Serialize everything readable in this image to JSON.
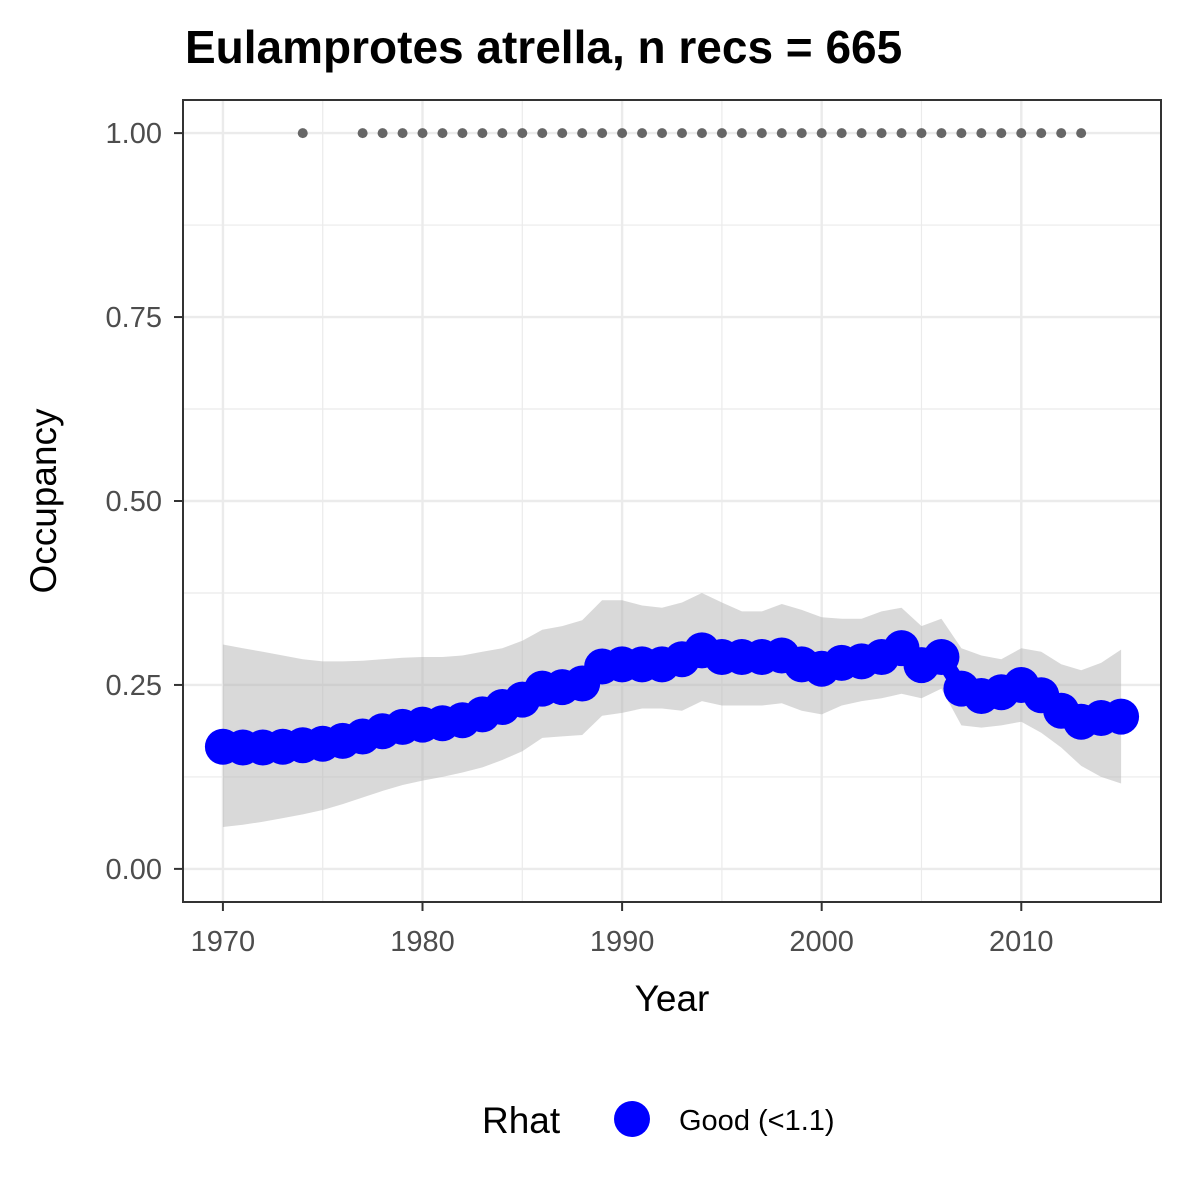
{
  "chart_data": {
    "type": "line",
    "title": "Eulamprotes atrella, n recs = 665",
    "xlabel": "Year",
    "ylabel": "Occupancy",
    "xlim": [
      1968,
      2017
    ],
    "ylim": [
      -0.045,
      1.045
    ],
    "x_ticks": [
      1970,
      1980,
      1990,
      2000,
      2010
    ],
    "x_tick_labels": [
      "1970",
      "1980",
      "1990",
      "2000",
      "2010"
    ],
    "y_ticks": [
      0,
      0.25,
      0.5,
      0.75,
      1.0
    ],
    "y_tick_labels": [
      "0.00",
      "0.25",
      "0.50",
      "0.75",
      "1.00"
    ],
    "grid": true,
    "legend": {
      "title": "Rhat",
      "position": "bottom",
      "entries": [
        {
          "label": "Good (<1.1)",
          "color": "#0000ff"
        }
      ]
    },
    "colors": {
      "mean": "#0000ff",
      "ribbon": "#b3b3b3",
      "records": "#666666",
      "grid": "#ebebeb",
      "border": "#333333"
    },
    "years": [
      1970,
      1971,
      1972,
      1973,
      1974,
      1975,
      1976,
      1977,
      1978,
      1979,
      1980,
      1981,
      1982,
      1983,
      1984,
      1985,
      1986,
      1987,
      1988,
      1989,
      1990,
      1991,
      1992,
      1993,
      1994,
      1995,
      1996,
      1997,
      1998,
      1999,
      2000,
      2001,
      2002,
      2003,
      2004,
      2005,
      2006,
      2007,
      2008,
      2009,
      2010,
      2011,
      2012,
      2013,
      2014,
      2015
    ],
    "occupancy": [
      0.166,
      0.165,
      0.165,
      0.166,
      0.168,
      0.17,
      0.174,
      0.18,
      0.187,
      0.193,
      0.196,
      0.198,
      0.202,
      0.21,
      0.22,
      0.23,
      0.245,
      0.247,
      0.252,
      0.275,
      0.278,
      0.278,
      0.278,
      0.285,
      0.297,
      0.288,
      0.288,
      0.288,
      0.29,
      0.278,
      0.272,
      0.28,
      0.282,
      0.288,
      0.3,
      0.277,
      0.288,
      0.245,
      0.235,
      0.24,
      0.25,
      0.236,
      0.215,
      0.2,
      0.205,
      0.207
    ],
    "lower": [
      0.057,
      0.06,
      0.064,
      0.069,
      0.074,
      0.08,
      0.088,
      0.097,
      0.106,
      0.114,
      0.12,
      0.125,
      0.131,
      0.138,
      0.148,
      0.16,
      0.178,
      0.18,
      0.182,
      0.208,
      0.212,
      0.218,
      0.218,
      0.215,
      0.228,
      0.222,
      0.222,
      0.222,
      0.225,
      0.215,
      0.21,
      0.222,
      0.228,
      0.232,
      0.238,
      0.232,
      0.245,
      0.195,
      0.192,
      0.195,
      0.2,
      0.185,
      0.165,
      0.14,
      0.125,
      0.116
    ],
    "upper": [
      0.305,
      0.3,
      0.295,
      0.29,
      0.285,
      0.282,
      0.282,
      0.283,
      0.285,
      0.287,
      0.288,
      0.288,
      0.29,
      0.295,
      0.3,
      0.31,
      0.325,
      0.33,
      0.338,
      0.365,
      0.365,
      0.358,
      0.355,
      0.362,
      0.375,
      0.362,
      0.35,
      0.35,
      0.36,
      0.352,
      0.342,
      0.34,
      0.34,
      0.35,
      0.355,
      0.33,
      0.34,
      0.3,
      0.29,
      0.285,
      0.3,
      0.295,
      0.278,
      0.27,
      0.28,
      0.298
    ],
    "record_years": [
      1974,
      1977,
      1978,
      1979,
      1980,
      1981,
      1982,
      1983,
      1984,
      1985,
      1986,
      1987,
      1988,
      1989,
      1990,
      1991,
      1992,
      1993,
      1994,
      1995,
      1996,
      1997,
      1998,
      1999,
      2000,
      2001,
      2002,
      2003,
      2004,
      2005,
      2006,
      2007,
      2008,
      2009,
      2010,
      2011,
      2012,
      2013
    ],
    "record_value": 1.0,
    "rhat": "Good (<1.1)"
  }
}
